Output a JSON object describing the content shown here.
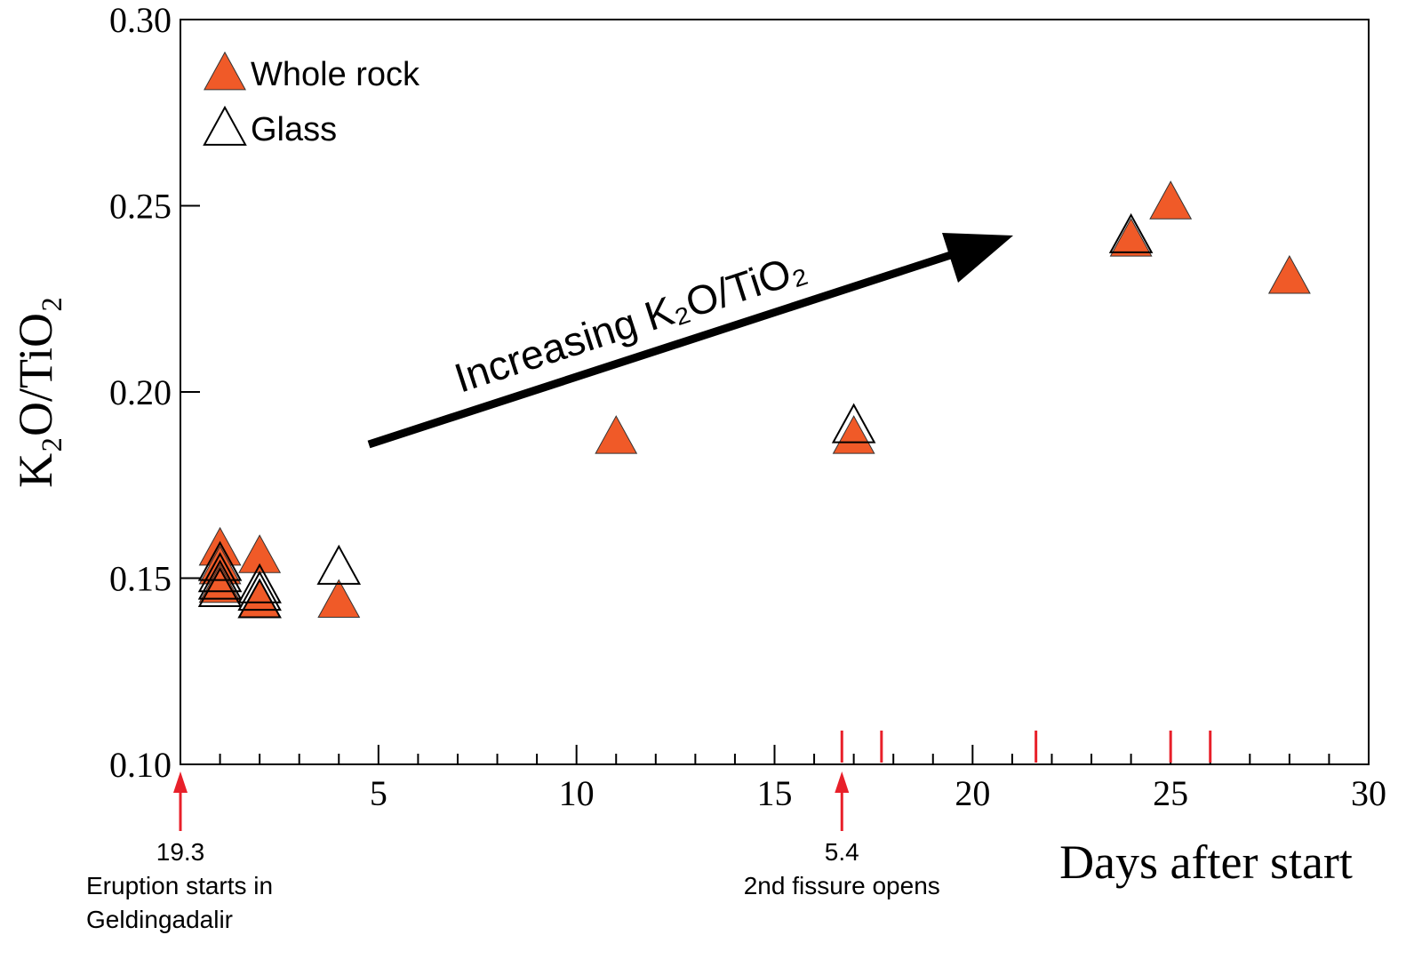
{
  "chart_data": {
    "type": "scatter",
    "xlabel": "Days after start",
    "ylabel": "K₂O/TiO₂",
    "xlim": [
      0,
      30
    ],
    "ylim": [
      0.1,
      0.3
    ],
    "xticks": [
      5,
      10,
      15,
      20,
      25,
      30
    ],
    "xminorticks": [
      1,
      2,
      3,
      4,
      6,
      7,
      8,
      9,
      11,
      12,
      13,
      14,
      16,
      17,
      18,
      19,
      21,
      22,
      23,
      24,
      26,
      27,
      28,
      29
    ],
    "yticks": [
      {
        "value": 0.1,
        "label": "0.10"
      },
      0.15,
      {
        "value": 0.2,
        "label": "0.20"
      },
      0.25,
      {
        "value": 0.3,
        "label": "0.30"
      }
    ],
    "legend": "upper left",
    "series": [
      {
        "name": "Whole rock",
        "color": "#f05a28",
        "filled": true,
        "x": [
          1,
          1,
          1,
          2,
          2,
          4,
          11,
          17,
          24,
          25,
          28
        ],
        "values": [
          0.158,
          0.153,
          0.148,
          0.156,
          0.144,
          0.144,
          0.188,
          0.188,
          0.241,
          0.251,
          0.231
        ]
      },
      {
        "name": "Glass",
        "color": "#000000",
        "filled": false,
        "x": [
          1,
          1,
          1,
          1,
          2,
          2,
          2,
          4,
          17,
          24
        ],
        "values": [
          0.154,
          0.151,
          0.149,
          0.147,
          0.148,
          0.146,
          0.144,
          0.153,
          0.191,
          0.242
        ]
      }
    ],
    "trend_annotation": "Increasing K₂O/TiO₂",
    "event_ticks": {
      "color": "#e8202a",
      "x": [
        16.7,
        17.7,
        21.6,
        25,
        26
      ]
    },
    "annotations": [
      {
        "x": 0,
        "date": "19.3",
        "text": [
          "Eruption starts in",
          "Geldingadalir"
        ]
      },
      {
        "x": 16.7,
        "date": "5.4",
        "text": [
          "2nd fissure opens"
        ]
      }
    ]
  }
}
